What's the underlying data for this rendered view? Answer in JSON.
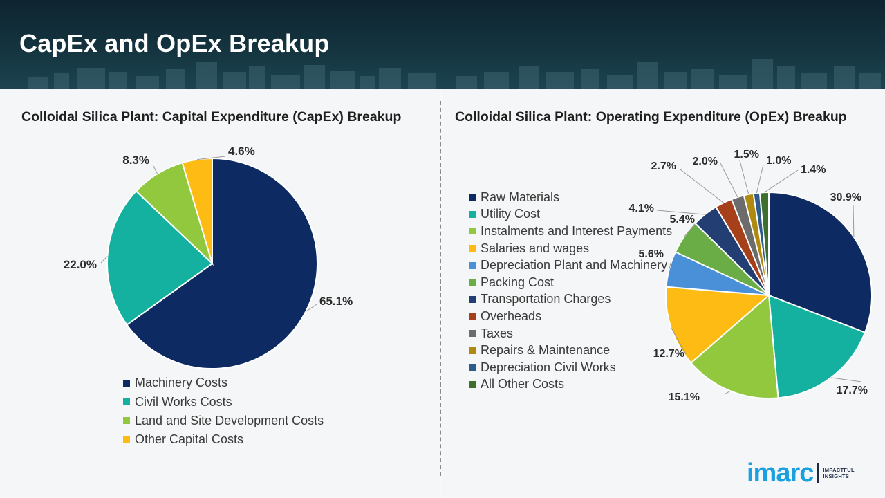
{
  "header": {
    "title": "CapEx and OpEx Breakup"
  },
  "chart_data": [
    {
      "type": "pie",
      "title": "Colloidal Silica Plant: Capital Expenditure (CapEx) Breakup",
      "legend_position": "bottom",
      "categories": [
        "Machinery Costs",
        "Civil Works Costs",
        "Land and Site Development Costs",
        "Other Capital Costs"
      ],
      "values": [
        65.1,
        22.0,
        8.3,
        4.6
      ],
      "labels": [
        "65.1%",
        "22.0%",
        "8.3%",
        "4.6%"
      ],
      "colors": [
        "#0d2a63",
        "#14b0a0",
        "#92c83e",
        "#fdbb13"
      ]
    },
    {
      "type": "pie",
      "title": "Colloidal Silica Plant: Operating Expenditure (OpEx) Breakup",
      "legend_position": "left",
      "categories": [
        "Raw Materials",
        "Utility Cost",
        "Instalments and Interest Payments",
        "Salaries and wages",
        "Depreciation Plant and Machinery",
        "Packing Cost",
        "Transportation Charges",
        "Overheads",
        "Taxes",
        "Repairs & Maintenance",
        "Depreciation Civil Works",
        "All Other Costs"
      ],
      "values": [
        30.9,
        17.7,
        15.1,
        12.7,
        5.6,
        5.4,
        4.1,
        2.7,
        2.0,
        1.5,
        1.0,
        1.4
      ],
      "labels": [
        "30.9%",
        "17.7%",
        "15.1%",
        "12.7%",
        "5.6%",
        "5.4%",
        "4.1%",
        "2.7%",
        "2.0%",
        "1.5%",
        "1.0%",
        "1.4%"
      ],
      "colors": [
        "#0d2a63",
        "#14b0a0",
        "#92c83e",
        "#fdbb13",
        "#4a90d9",
        "#6aac46",
        "#233e73",
        "#a5401a",
        "#6c6c6c",
        "#b08a10",
        "#2e5c8a",
        "#3f6f2e"
      ]
    }
  ],
  "logo": {
    "brand": "imarc",
    "tagline_1": "IMPACTFUL",
    "tagline_2": "INSIGHTS"
  }
}
